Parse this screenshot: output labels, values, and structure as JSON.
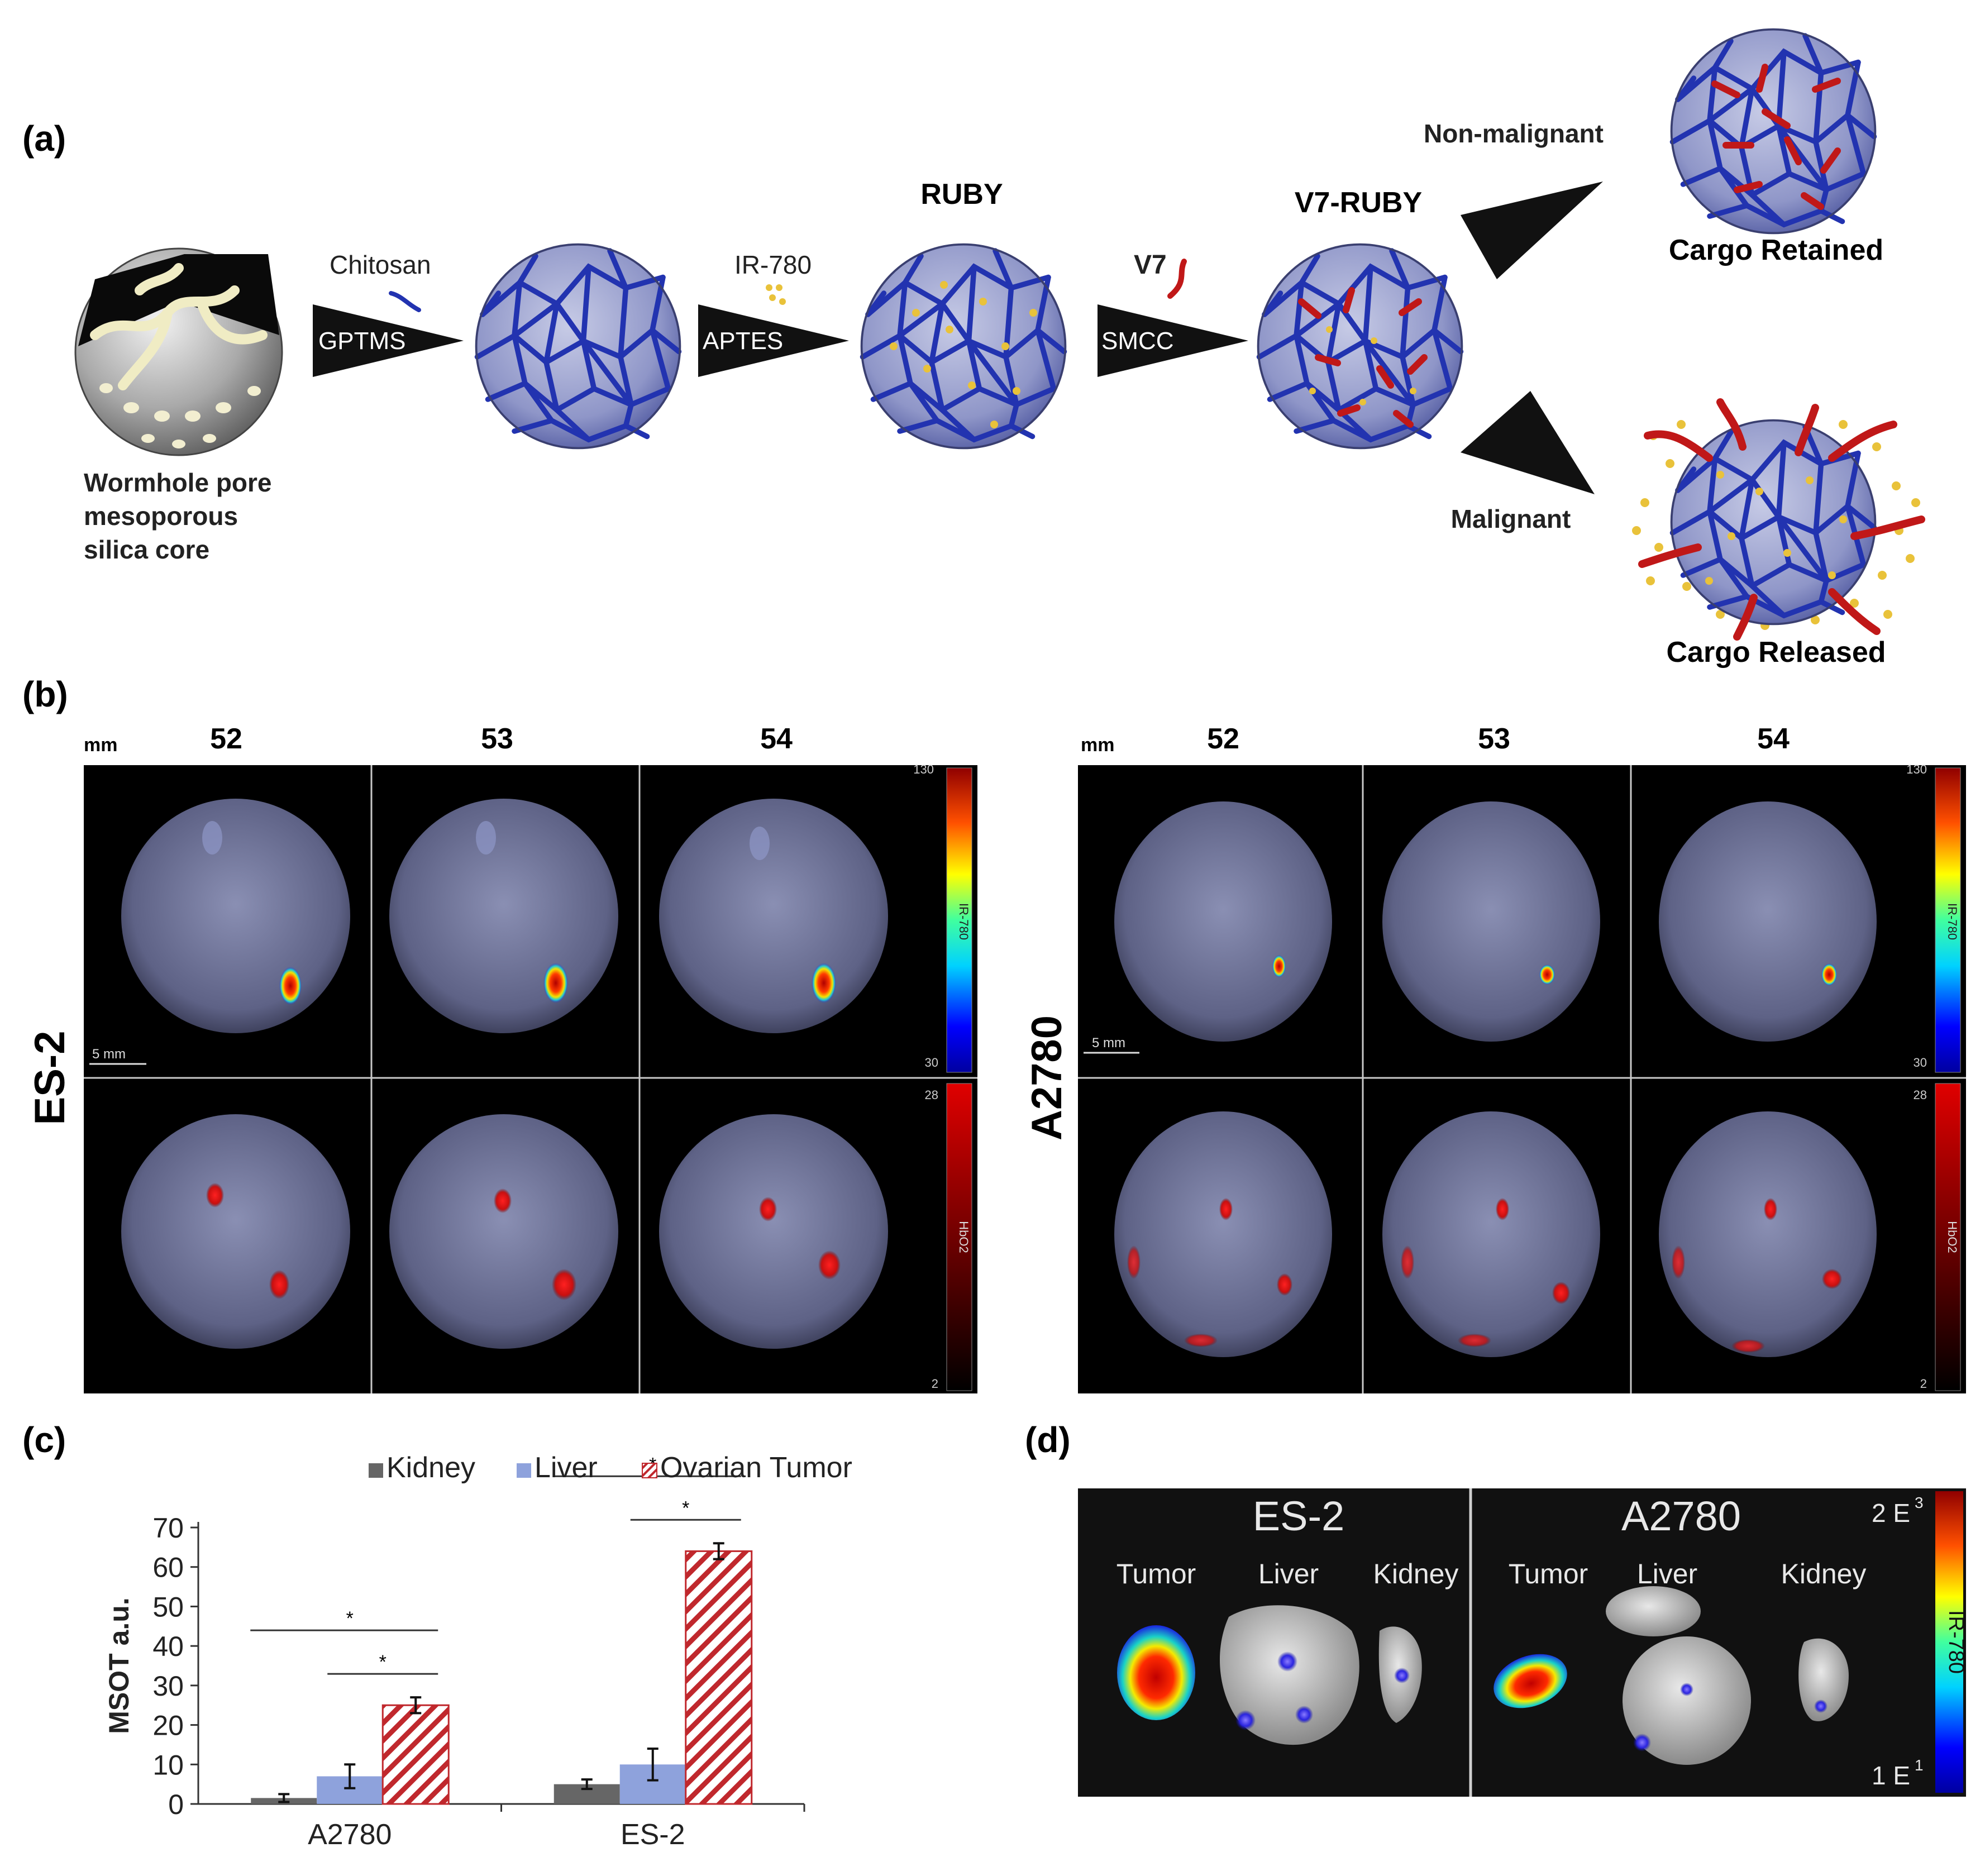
{
  "panel_a": {
    "label": "(a)",
    "core_caption": [
      "Wormhole pore",
      "mesoporous",
      "silica core"
    ],
    "steps": [
      {
        "above": "Chitosan",
        "inside": "GPTMS"
      },
      {
        "above": "IR-780",
        "inside": "APTES"
      },
      {
        "above": "V7",
        "inside": "SMCC"
      }
    ],
    "particle_titles": [
      "RUBY",
      "V7-RUBY"
    ],
    "branches": {
      "upper_label": "Non-malignant",
      "upper_result": "Cargo Retained",
      "lower_label": "Malignant",
      "lower_result": "Cargo Released"
    }
  },
  "panel_b": {
    "label": "(b)",
    "slice_unit": "mm",
    "slices": [
      "52",
      "53",
      "54"
    ],
    "scale_bar": "5 mm",
    "groups": [
      {
        "name": "ES-2"
      },
      {
        "name": "A2780"
      }
    ],
    "colorbars": {
      "ir780": {
        "label": "IR-780",
        "max": "130",
        "min": "30"
      },
      "hbo2": {
        "label": "HbO2",
        "max": "28",
        "min": "2"
      }
    }
  },
  "panel_c": {
    "label": "(c)",
    "chart_data": {
      "type": "bar",
      "categories": [
        "A2780",
        "ES-2"
      ],
      "series": [
        {
          "name": "Kidney",
          "values": [
            1.5,
            5.0
          ],
          "errors": [
            1.0,
            1.2
          ],
          "color": "#666666"
        },
        {
          "name": "Liver",
          "values": [
            7.0,
            10.0
          ],
          "errors": [
            3.0,
            4.0
          ],
          "color": "#8ea2dc"
        },
        {
          "name": "Ovarian Tumor",
          "values": [
            25.0,
            64.0
          ],
          "errors": [
            2.0,
            2.0
          ],
          "color": "#c0282d",
          "pattern": "diagonal-hatch"
        }
      ],
      "ylabel": "MSOT a.u.",
      "ylim": [
        0,
        70
      ],
      "yticks": [
        "0",
        "10",
        "20",
        "30",
        "40",
        "50",
        "60",
        "70"
      ],
      "significance_marks": [
        "*",
        "*",
        "*",
        "*"
      ],
      "legend_position": "top"
    }
  },
  "panel_d": {
    "label": "(d)",
    "groups": [
      {
        "name": "ES-2",
        "organs": [
          "Tumor",
          "Liver",
          "Kidney"
        ]
      },
      {
        "name": "A2780",
        "organs": [
          "Tumor",
          "Liver",
          "Kidney"
        ]
      }
    ],
    "colorbar": {
      "label": "IR-780",
      "max_base": "2 E",
      "max_exp": "3",
      "min_base": "1 E",
      "min_exp": "1"
    }
  },
  "colors": {
    "chitosan_blue": "#2233b0",
    "v7_red": "#c01818",
    "cargo_yellow": "#e9c23a",
    "tissue": "#6f7396"
  }
}
